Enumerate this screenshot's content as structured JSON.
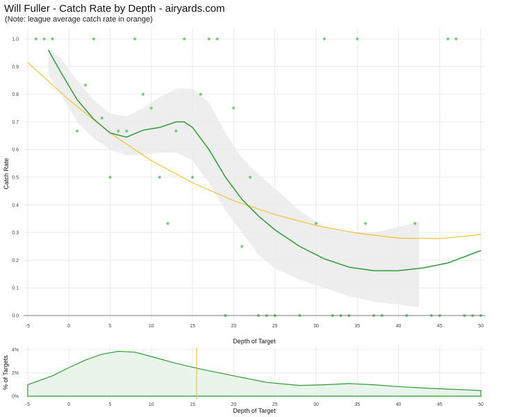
{
  "title": "Will Fuller - Catch Rate by Depth - airyards.com",
  "subtitle": "(Note: league average catch rate in orange)",
  "colors": {
    "player": "#2e9a36",
    "league": "#f3c232",
    "points": "#6cbf6e",
    "band": "#ebebeb",
    "grid": "#e5e5e5"
  },
  "chart_data": [
    {
      "type": "scatter",
      "xlabel": "Depth of Target",
      "ylabel": "Catch Rate",
      "xlim": [
        -5.5,
        50.5
      ],
      "ylim": [
        0,
        1
      ],
      "xticks": [
        -5,
        0,
        5,
        10,
        15,
        20,
        25,
        30,
        35,
        40,
        45,
        50
      ],
      "yticks": [
        0,
        0.1,
        0.2,
        0.3,
        0.4,
        0.5,
        0.6,
        0.7,
        0.8,
        0.9,
        1.0
      ],
      "ytick_labels": [
        "0.0",
        "0.1",
        "0.2",
        "0.3",
        "0.4",
        "0.5",
        "0.6",
        "0.7",
        "0.8",
        "0.9",
        "1.0"
      ],
      "grid": true,
      "points": [
        [
          -4,
          1
        ],
        [
          -3,
          1
        ],
        [
          -2,
          1
        ],
        [
          3,
          1
        ],
        [
          8,
          1
        ],
        [
          14,
          1
        ],
        [
          17,
          1
        ],
        [
          18,
          1
        ],
        [
          31,
          1
        ],
        [
          35,
          1
        ],
        [
          46,
          1
        ],
        [
          47,
          1
        ],
        [
          2,
          0.833
        ],
        [
          9,
          0.8
        ],
        [
          16,
          0.8
        ],
        [
          10,
          0.75
        ],
        [
          20,
          0.75
        ],
        [
          4,
          0.714
        ],
        [
          1,
          0.667
        ],
        [
          6,
          0.667
        ],
        [
          7,
          0.667
        ],
        [
          13,
          0.667
        ],
        [
          5,
          0.5
        ],
        [
          11,
          0.5
        ],
        [
          15,
          0.5
        ],
        [
          22,
          0.5
        ],
        [
          12,
          0.333
        ],
        [
          30,
          0.333
        ],
        [
          36,
          0.333
        ],
        [
          42,
          0.333
        ],
        [
          21,
          0.25
        ],
        [
          19,
          0
        ],
        [
          23,
          0
        ],
        [
          24,
          0
        ],
        [
          25,
          0
        ],
        [
          28,
          0
        ],
        [
          32,
          0
        ],
        [
          33,
          0
        ],
        [
          34,
          0
        ],
        [
          37,
          0
        ],
        [
          38,
          0
        ],
        [
          41,
          0
        ],
        [
          44,
          0
        ],
        [
          45,
          0
        ],
        [
          48,
          0
        ],
        [
          49,
          0
        ],
        [
          50,
          0
        ]
      ],
      "player_curve": {
        "x": [
          -2.5,
          -1,
          1,
          3,
          5,
          7,
          9,
          11,
          13,
          14,
          15,
          17,
          19,
          21,
          23,
          25,
          28,
          31,
          34,
          37,
          40,
          43,
          46,
          50
        ],
        "y": [
          0.96,
          0.88,
          0.78,
          0.71,
          0.66,
          0.645,
          0.67,
          0.68,
          0.7,
          0.7,
          0.68,
          0.6,
          0.5,
          0.42,
          0.36,
          0.31,
          0.25,
          0.205,
          0.175,
          0.162,
          0.162,
          0.172,
          0.19,
          0.235
        ]
      },
      "player_band_upper": {
        "x": [
          -2.5,
          -1,
          1,
          3,
          5,
          7,
          9,
          11,
          13,
          15,
          17,
          19,
          21,
          23,
          25,
          28,
          31,
          34,
          37,
          40,
          42.5
        ],
        "y": [
          0.965,
          0.93,
          0.85,
          0.78,
          0.73,
          0.72,
          0.75,
          0.79,
          0.82,
          0.82,
          0.77,
          0.66,
          0.57,
          0.51,
          0.46,
          0.38,
          0.32,
          0.3,
          0.3,
          0.32,
          0.34
        ]
      },
      "player_band_lower": {
        "x": [
          -2.5,
          -1,
          1,
          3,
          5,
          7,
          9,
          11,
          13,
          15,
          17,
          19,
          21,
          23,
          25,
          28,
          31,
          34,
          37,
          40,
          42.5
        ],
        "y": [
          0.87,
          0.8,
          0.7,
          0.64,
          0.6,
          0.58,
          0.58,
          0.59,
          0.59,
          0.56,
          0.48,
          0.38,
          0.3,
          0.22,
          0.17,
          0.13,
          0.1,
          0.07,
          0.05,
          0.04,
          0.03
        ]
      },
      "league_curve": {
        "x": [
          -5,
          0,
          5,
          10,
          15,
          20,
          25,
          30,
          35,
          40,
          45,
          50
        ],
        "y": [
          0.915,
          0.78,
          0.66,
          0.56,
          0.48,
          0.415,
          0.365,
          0.325,
          0.298,
          0.28,
          0.278,
          0.293
        ]
      }
    },
    {
      "type": "area",
      "xlabel": "Depth of Target",
      "ylabel": "% of Targets",
      "xlim": [
        -5.5,
        50.5
      ],
      "ylim": [
        0,
        0.04
      ],
      "xticks": [
        -5,
        0,
        5,
        10,
        15,
        20,
        25,
        30,
        35,
        40,
        45,
        50
      ],
      "yticks": [
        0,
        0.02,
        0.04
      ],
      "ytick_labels": [
        "0%",
        "2%",
        "4%"
      ],
      "grid": true,
      "density": {
        "x": [
          -5,
          -2,
          0,
          2,
          4,
          6,
          8,
          10,
          13,
          16,
          20,
          24,
          28,
          31,
          34,
          37,
          40,
          44,
          48,
          50
        ],
        "y": [
          0.0098,
          0.0175,
          0.0245,
          0.031,
          0.036,
          0.0385,
          0.0378,
          0.034,
          0.0282,
          0.0232,
          0.0175,
          0.0118,
          0.0092,
          0.0098,
          0.0108,
          0.0098,
          0.0082,
          0.0066,
          0.0055,
          0.0048
        ]
      },
      "league_mean_x": 15.5
    }
  ]
}
